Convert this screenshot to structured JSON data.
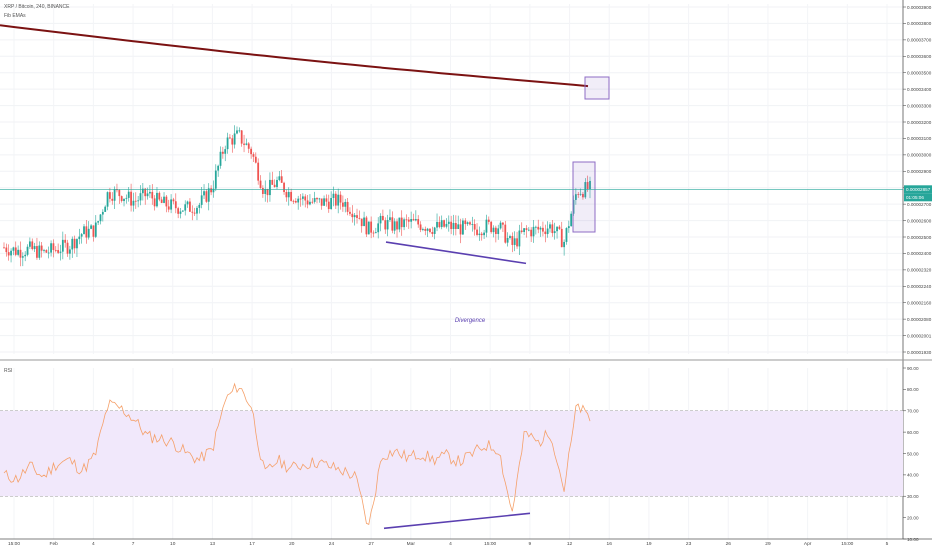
{
  "header": {
    "symbol_line": "XRP / Bitcoin, 240, BINANCE",
    "indicator_line": "Fib EMAs"
  },
  "rsi_panel": {
    "label": "RSI"
  },
  "annotations": {
    "divergence": "Divergence"
  },
  "price_tag": {
    "price": "0.00002857",
    "countdown": "01:05:06"
  },
  "colors": {
    "up": "#26a69a",
    "down": "#ef5350",
    "ma_line": "#7b1212",
    "divergence_line": "#5a3fb0",
    "rsi_line": "#f5a06a",
    "rsi_band": "#f1e8fb",
    "highlight_box": "#8e6cc5",
    "price_line": "#26a69a"
  },
  "chart_data": [
    {
      "type": "candlestick",
      "title": "XRP / Bitcoin, 240, BINANCE",
      "ylim": [
        1.93e-05,
        3.9e-05
      ],
      "y_ticks": [
        "0.00003900",
        "0.00003800",
        "0.00003700",
        "0.00003600",
        "0.00003500",
        "0.00003400",
        "0.00003300",
        "0.00003200",
        "0.00003100",
        "0.00003000",
        "0.00002900",
        "0.00002800",
        "0.00002700",
        "0.00002600",
        "0.00002500",
        "0.00002400",
        "0.00002320",
        "0.00002240",
        "0.00002160",
        "0.00002080",
        "0.00002001",
        "0.00001930"
      ],
      "x_ticks": [
        "15:00",
        "Feb",
        "4",
        "7",
        "10",
        "13",
        "17",
        "20",
        "24",
        "27",
        "Mar",
        "4",
        "15:00",
        "9",
        "12",
        "16",
        "19",
        "23",
        "26",
        "29",
        "Apr",
        "15:00",
        "5"
      ],
      "series": [
        {
          "name": "XRP/BTC",
          "type": "candles",
          "close_path": [
            2.53e-05,
            2.51e-05,
            2.52e-05,
            2.5e-05,
            2.52e-05,
            2.54e-05,
            2.61e-05,
            2.63e-05,
            2.84e-05,
            2.83e-05,
            2.79e-05,
            2.83e-05,
            2.78e-05,
            2.76e-05,
            2.75e-05,
            2.77e-05,
            2.87e-05,
            3.12e-05,
            3.16e-05,
            3.07e-05,
            2.84e-05,
            2.9e-05,
            2.83e-05,
            2.8e-05,
            2.78e-05,
            2.79e-05,
            2.79e-05,
            2.73e-05,
            2.63e-05,
            2.67e-05,
            2.65e-05,
            2.67e-05,
            2.66e-05,
            2.64e-05,
            2.65e-05,
            2.64e-05,
            2.63e-05,
            2.65e-05,
            2.65e-05,
            2.54e-05,
            2.62e-05,
            2.63e-05,
            2.65e-05,
            2.56e-05,
            2.85e-05,
            2.86e-05
          ]
        },
        {
          "name": "Fib EMA",
          "type": "line",
          "start_end": [
            3.78e-05,
            3.42e-05
          ]
        },
        {
          "name": "Divergence",
          "type": "line",
          "start_end": [
            2.56e-05,
            2.44e-05
          ]
        }
      ]
    },
    {
      "type": "line",
      "title": "RSI",
      "ylim": [
        10,
        90
      ],
      "y_ticks": [
        "90.00",
        "80.00",
        "70.00",
        "60.00",
        "50.00",
        "40.00",
        "30.00",
        "20.00",
        "10.00"
      ],
      "band": [
        30,
        70
      ],
      "series": [
        {
          "name": "RSI",
          "values": [
            40,
            38,
            44,
            39,
            45,
            47,
            42,
            49,
            73,
            71,
            66,
            58,
            57,
            55,
            50,
            47,
            52,
            75,
            82,
            72,
            40,
            47,
            43,
            45,
            46,
            44,
            42,
            39,
            15,
            49,
            51,
            48,
            50,
            47,
            49,
            46,
            50,
            54,
            52,
            22,
            60,
            55,
            60,
            33,
            73,
            66
          ]
        },
        {
          "name": "Divergence",
          "values": [
            15,
            22
          ]
        }
      ]
    }
  ]
}
